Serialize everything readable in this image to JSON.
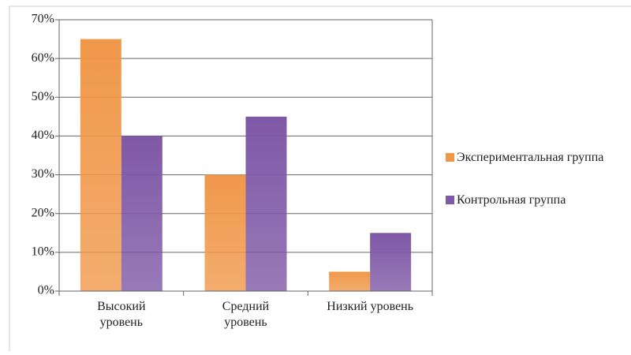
{
  "chart_data": {
    "type": "bar",
    "categories": [
      "Высокий\nуровень",
      "Средний\nуровень",
      "Низкий уровень"
    ],
    "series": [
      {
        "name": "Экспериментальная группа",
        "color": "#f0984a",
        "values": [
          65,
          30,
          5
        ]
      },
      {
        "name": "Контрольная группа",
        "color": "#7f58a6",
        "values": [
          40,
          45,
          15
        ]
      }
    ],
    "ylim": [
      0,
      70
    ],
    "yticks": [
      {
        "value": 0,
        "label": "0%"
      },
      {
        "value": 10,
        "label": "10%"
      },
      {
        "value": 20,
        "label": "20%"
      },
      {
        "value": 30,
        "label": "30%"
      },
      {
        "value": 40,
        "label": "40%"
      },
      {
        "value": 50,
        "label": "50%"
      },
      {
        "value": 60,
        "label": "60%"
      },
      {
        "value": 70,
        "label": "70%"
      }
    ],
    "grid": true,
    "legend": "right"
  }
}
